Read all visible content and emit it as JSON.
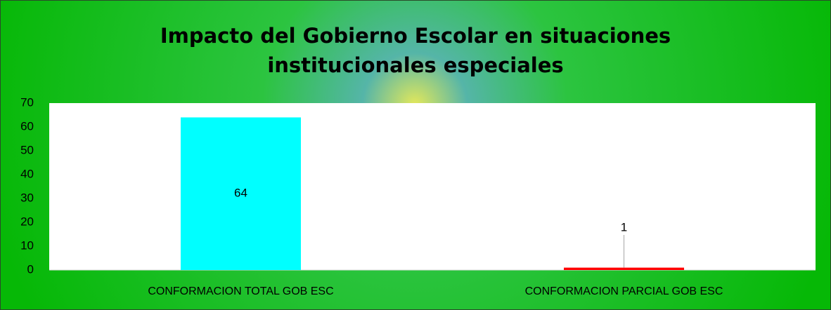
{
  "chart_data": {
    "type": "bar",
    "title": "Impacto del Gobierno Escolar en situaciones institucionales especiales",
    "categories": [
      "CONFORMACION TOTAL GOB ESC",
      "CONFORMACION PARCIAL GOB ESC"
    ],
    "values": [
      64,
      1
    ],
    "colors": [
      "#00ffff",
      "#ff0000"
    ],
    "ylim": [
      0,
      70
    ],
    "yticks": [
      0,
      10,
      20,
      30,
      40,
      50,
      60,
      70
    ],
    "grid": false
  }
}
